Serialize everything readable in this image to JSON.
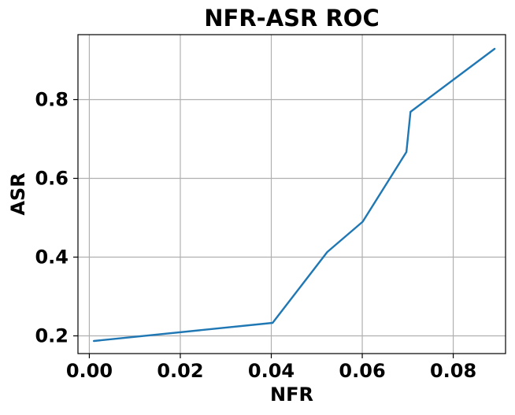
{
  "chart_data": {
    "type": "line",
    "title": "NFR-ASR ROC",
    "xlabel": "NFR",
    "ylabel": "ASR",
    "xlim": [
      -0.0025,
      0.0915
    ],
    "ylim": [
      0.155,
      0.965
    ],
    "xticks": [
      0.0,
      0.02,
      0.04,
      0.06,
      0.08
    ],
    "xtick_labels": [
      "0.00",
      "0.02",
      "0.04",
      "0.06",
      "0.08"
    ],
    "yticks": [
      0.2,
      0.4,
      0.6,
      0.8
    ],
    "ytick_labels": [
      "0.2",
      "0.4",
      "0.6",
      "0.8"
    ],
    "grid": true,
    "colors": {
      "series": "#1f77b4",
      "grid": "#b0b0b0"
    },
    "series": [
      {
        "x": [
          0.001,
          0.0403,
          0.0523,
          0.0601,
          0.0697,
          0.0706,
          0.0891
        ],
        "y": [
          0.187,
          0.233,
          0.413,
          0.49,
          0.667,
          0.769,
          0.929
        ]
      }
    ]
  }
}
